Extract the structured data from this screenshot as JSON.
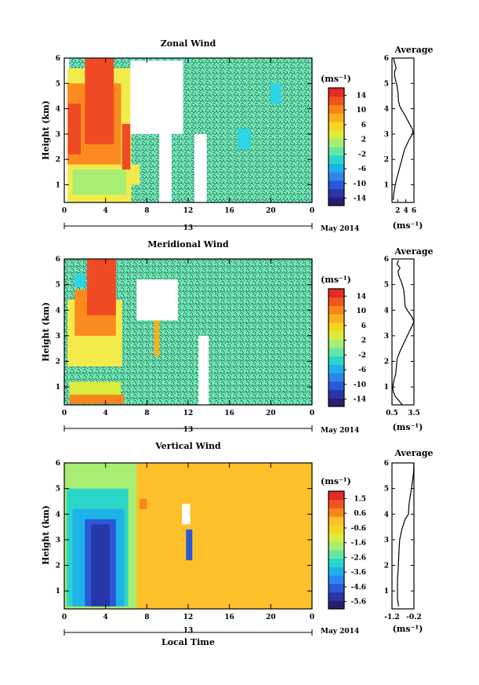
{
  "chart_data": [
    {
      "type": "heatmap",
      "title": "Zonal Wind",
      "ylabel": "Height (km)",
      "x_ticks": [
        "0",
        "4",
        "8",
        "12",
        "16",
        "20",
        "0"
      ],
      "y_ticks": [
        "1",
        "2",
        "3",
        "4",
        "5",
        "6"
      ],
      "xlim": [
        0,
        24
      ],
      "ylim": [
        0.3,
        6
      ],
      "date_label": "13",
      "month_label": "May 2014",
      "colorbar": {
        "unit": "(ms⁻¹)",
        "ticks": [
          "14",
          "10",
          "6",
          "2",
          "-2",
          "-6",
          "-10",
          "-14"
        ],
        "range": [
          -16,
          16
        ]
      },
      "profile": {
        "title": "Average",
        "xlabel": "(ms⁻¹)",
        "x_ticks": [
          "2",
          "4",
          "6"
        ],
        "xlim": [
          0.6,
          6
        ],
        "y_ticks": [
          "1",
          "2",
          "3",
          "4",
          "5",
          "6"
        ],
        "ylim": [
          0.3,
          6
        ],
        "points": [
          [
            0.9,
            0.4
          ],
          [
            1.0,
            0.6
          ],
          [
            1.3,
            0.9
          ],
          [
            1.7,
            1.2
          ],
          [
            2.2,
            1.5
          ],
          [
            2.7,
            1.8
          ],
          [
            3.2,
            2.1
          ],
          [
            3.7,
            2.4
          ],
          [
            4.3,
            2.6
          ],
          [
            4.9,
            2.8
          ],
          [
            5.5,
            2.95
          ],
          [
            5.8,
            3.05
          ],
          [
            5.6,
            3.2
          ],
          [
            5.1,
            3.35
          ],
          [
            4.6,
            3.5
          ],
          [
            4.1,
            3.65
          ],
          [
            3.6,
            3.8
          ],
          [
            3.0,
            3.95
          ],
          [
            2.5,
            4.1
          ],
          [
            2.2,
            4.3
          ],
          [
            2.1,
            4.6
          ],
          [
            1.9,
            4.85
          ],
          [
            1.6,
            5.05
          ],
          [
            1.3,
            5.25
          ],
          [
            1.2,
            5.45
          ],
          [
            1.6,
            5.6
          ],
          [
            1.4,
            5.75
          ],
          [
            1.1,
            5.9
          ],
          [
            1.0,
            6.0
          ]
        ]
      }
    },
    {
      "type": "heatmap",
      "title": "Meridional Wind",
      "ylabel": "Height (km)",
      "x_ticks": [
        "0",
        "4",
        "8",
        "12",
        "16",
        "20",
        "0"
      ],
      "y_ticks": [
        "1",
        "2",
        "3",
        "4",
        "5",
        "6"
      ],
      "xlim": [
        0,
        24
      ],
      "ylim": [
        0.3,
        6
      ],
      "date_label": "13",
      "month_label": "May 2014",
      "colorbar": {
        "unit": "(ms⁻¹)",
        "ticks": [
          "14",
          "10",
          "6",
          "2",
          "-2",
          "-6",
          "-10",
          "-14"
        ],
        "range": [
          -16,
          16
        ]
      },
      "profile": {
        "title": "Average",
        "xlabel": "(ms⁻¹)",
        "x_ticks": [
          "0.5",
          "3.5"
        ],
        "xlim": [
          0.5,
          3.5
        ],
        "y_ticks": [
          "1",
          "2",
          "3",
          "4",
          "5",
          "6"
        ],
        "ylim": [
          0.3,
          6
        ],
        "points": [
          [
            1.9,
            0.3
          ],
          [
            1.5,
            0.45
          ],
          [
            1.0,
            0.6
          ],
          [
            0.7,
            0.8
          ],
          [
            0.6,
            1.0
          ],
          [
            0.8,
            1.3
          ],
          [
            1.0,
            1.5
          ],
          [
            1.1,
            1.8
          ],
          [
            1.2,
            2.1
          ],
          [
            1.6,
            2.4
          ],
          [
            2.1,
            2.7
          ],
          [
            2.6,
            3.0
          ],
          [
            3.1,
            3.3
          ],
          [
            3.5,
            3.55
          ],
          [
            3.2,
            3.75
          ],
          [
            2.7,
            3.95
          ],
          [
            2.3,
            4.15
          ],
          [
            2.2,
            4.5
          ],
          [
            2.1,
            4.8
          ],
          [
            1.8,
            5.1
          ],
          [
            1.5,
            5.3
          ],
          [
            1.3,
            5.5
          ],
          [
            1.6,
            5.65
          ],
          [
            1.2,
            5.8
          ],
          [
            1.4,
            5.95
          ]
        ]
      }
    },
    {
      "type": "heatmap",
      "title": "Vertical Wind",
      "xlabel": "Local Time",
      "ylabel": "Height (km)",
      "x_ticks": [
        "0",
        "4",
        "8",
        "12",
        "16",
        "20",
        "0"
      ],
      "y_ticks": [
        "1",
        "2",
        "3",
        "4",
        "5",
        "6"
      ],
      "xlim": [
        0,
        24
      ],
      "ylim": [
        0.3,
        6
      ],
      "date_label": "13",
      "month_label": "May 2014",
      "colorbar": {
        "unit": "(ms⁻¹)",
        "ticks": [
          "1.5",
          "0.6",
          "-0.6",
          "-1.6",
          "-2.6",
          "-3.6",
          "-4.6",
          "-5.6"
        ],
        "range": [
          -6,
          2
        ]
      },
      "profile": {
        "title": "Average",
        "xlabel": "(ms⁻¹)",
        "x_ticks": [
          "-1.2",
          "-0.2"
        ],
        "xlim": [
          -1.2,
          -0.2
        ],
        "y_ticks": [
          "1",
          "2",
          "3",
          "4",
          "5",
          "6"
        ],
        "ylim": [
          0.3,
          6
        ],
        "points": [
          [
            -0.9,
            0.4
          ],
          [
            -0.95,
            0.7
          ],
          [
            -0.95,
            1.0
          ],
          [
            -0.95,
            1.4
          ],
          [
            -0.92,
            1.8
          ],
          [
            -0.9,
            2.2
          ],
          [
            -0.88,
            2.6
          ],
          [
            -0.85,
            3.0
          ],
          [
            -0.75,
            3.4
          ],
          [
            -0.6,
            3.8
          ],
          [
            -0.45,
            4.0
          ],
          [
            -0.42,
            4.4
          ],
          [
            -0.35,
            4.8
          ],
          [
            -0.28,
            5.2
          ],
          [
            -0.22,
            5.6
          ],
          [
            -0.2,
            6.0
          ]
        ]
      }
    }
  ]
}
